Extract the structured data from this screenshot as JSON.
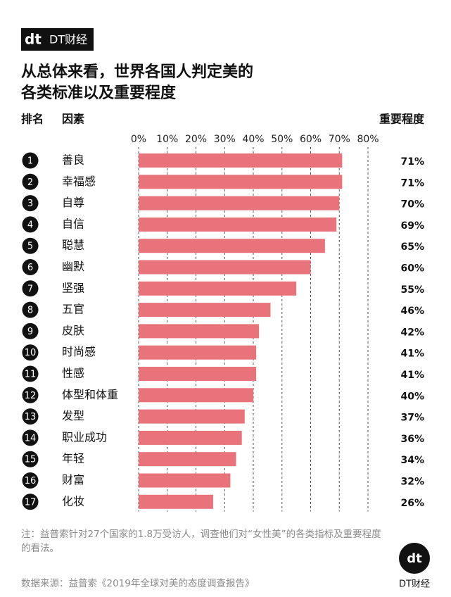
{
  "chart_data": {
    "type": "bar",
    "orientation": "horizontal",
    "logo_mark": "dt",
    "logo_text": "DT财经",
    "title": [
      "从总体来看，世界各国人判定美的",
      "各类标准以及重要程度"
    ],
    "rank_header": "排名",
    "category_header": "因素",
    "value_header": "重要程度",
    "ranks": [
      1,
      2,
      3,
      4,
      5,
      6,
      7,
      8,
      9,
      10,
      11,
      12,
      13,
      14,
      15,
      16,
      17
    ],
    "categories": [
      "善良",
      "幸福感",
      "自尊",
      "自信",
      "聪慧",
      "幽默",
      "坚强",
      "五官",
      "皮肤",
      "时尚感",
      "性感",
      "体型和体重",
      "发型",
      "职业成功",
      "年轻",
      "财富",
      "化妆"
    ],
    "values": [
      71,
      71,
      70,
      69,
      65,
      60,
      55,
      46,
      42,
      41,
      41,
      40,
      37,
      36,
      34,
      32,
      26
    ],
    "value_labels": [
      "71%",
      "71%",
      "70%",
      "69%",
      "65%",
      "60%",
      "55%",
      "46%",
      "42%",
      "41%",
      "41%",
      "40%",
      "37%",
      "36%",
      "34%",
      "32%",
      "26%"
    ],
    "color": "#e8737a",
    "xlim": [
      0,
      80
    ],
    "xticks": [
      {
        "value": 0,
        "label": "0%"
      },
      {
        "value": 10,
        "label": "10%"
      },
      {
        "value": 20,
        "label": "20%"
      },
      {
        "value": 30,
        "label": "30%"
      },
      {
        "value": 40,
        "label": "40%"
      },
      {
        "value": 50,
        "label": "50%"
      },
      {
        "value": 60,
        "label": "60%"
      },
      {
        "value": 70,
        "label": "70%"
      },
      {
        "value": 80,
        "label": "80%"
      }
    ],
    "grid": true,
    "note": "注：益普索针对27个国家的1.8万受访人，调查他们对“女性美”的各类指标及重要程度的看法。",
    "source": "数据来源：益普索《2019年全球对美的态度调查报告》"
  }
}
